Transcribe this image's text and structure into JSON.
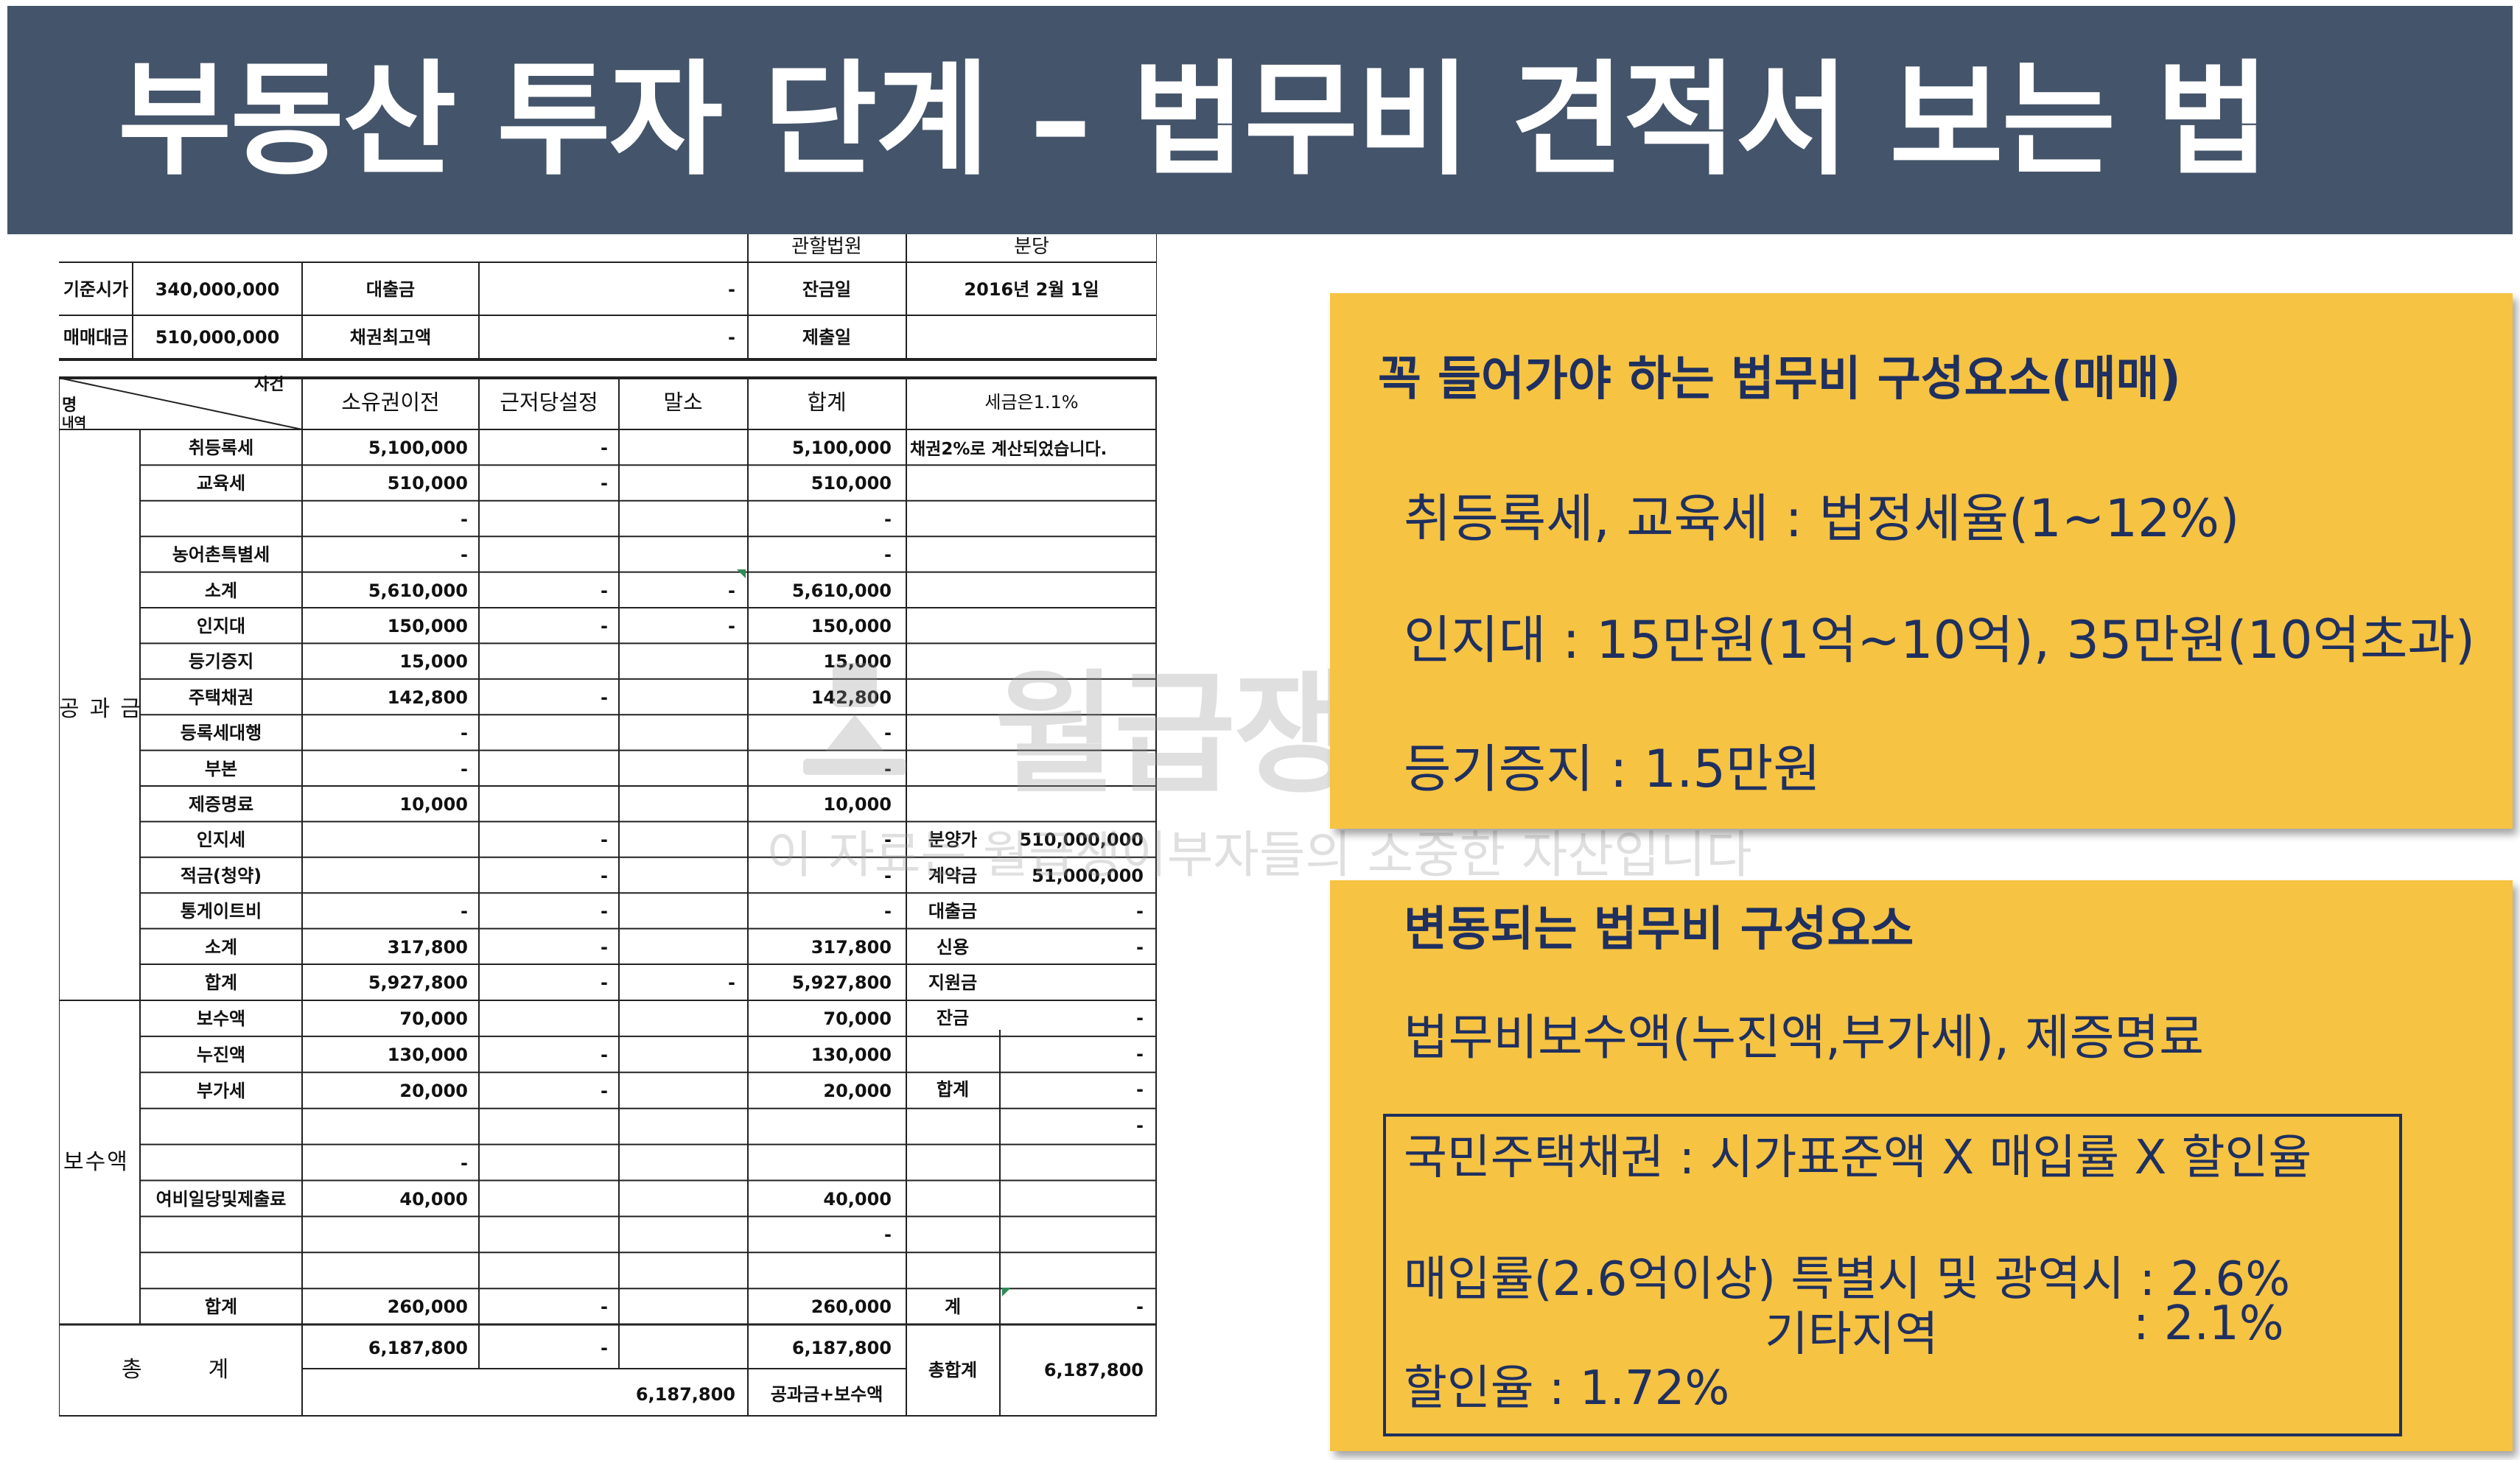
{
  "title": "부동산 투자 단계 – 법무비 견적서 보는 법",
  "colors": {
    "title_bg": "#44546a",
    "title_text": "#ffffff",
    "box_bg": "#f6c342",
    "box_text": "#1f3060"
  },
  "sheet": {
    "top": {
      "court_label": "관할법원",
      "unit_label": "분당",
      "base_price_label": "기준시가",
      "base_price": "340,000,000",
      "loan_label": "대출금",
      "loan_dash": "-",
      "balance_date_label": "잔금일",
      "balance_date": "2016년 2월 1일",
      "sale_price_label": "매매대금",
      "sale_price": "510,000,000",
      "max_bond_label": "채권최고액",
      "max_bond_dash": "-",
      "submit_date_label": "제출일"
    },
    "header": {
      "corner_top": "사건",
      "corner_bottom": "명",
      "corner_cut": "내역",
      "col1": "소유권이전",
      "col2": "근저당설정",
      "col3": "말소",
      "col4": "합계",
      "note": "세금은1.1%"
    },
    "section_public": "공과금",
    "section_fee": "보수액",
    "section_total": "총계",
    "public_rows": [
      {
        "name": "취등록세",
        "a": "5,100,000",
        "b": "-",
        "c": "",
        "total": "5,100,000"
      },
      {
        "name": "교육세",
        "a": "510,000",
        "b": "-",
        "c": "",
        "total": "510,000"
      },
      {
        "name": "",
        "a": "-",
        "b": "",
        "c": "",
        "total": "-"
      },
      {
        "name": "농어촌특별세",
        "a": "-",
        "b": "",
        "c": "",
        "total": "-"
      },
      {
        "name": "소계",
        "a": "5,610,000",
        "b": "-",
        "c": "-",
        "total": "5,610,000"
      },
      {
        "name": "인지대",
        "a": "150,000",
        "b": "-",
        "c": "-",
        "total": "150,000"
      },
      {
        "name": "등기증지",
        "a": "15,000",
        "b": "",
        "c": "",
        "total": "15,000"
      },
      {
        "name": "주택채권",
        "a": "142,800",
        "b": "-",
        "c": "",
        "total": "142,800"
      },
      {
        "name": "등록세대행",
        "a": "-",
        "b": "",
        "c": "",
        "total": "-"
      },
      {
        "name": "부본",
        "a": "-",
        "b": "",
        "c": "",
        "total": "-"
      },
      {
        "name": "제증명료",
        "a": "10,000",
        "b": "",
        "c": "",
        "total": "10,000"
      },
      {
        "name": "인지세",
        "a": "",
        "b": "-",
        "c": "",
        "total": "-"
      },
      {
        "name": "적금(청약)",
        "a": "",
        "b": "-",
        "c": "",
        "total": "-"
      },
      {
        "name": "통게이트비",
        "a": "-",
        "b": "-",
        "c": "",
        "total": "-"
      },
      {
        "name": "소계",
        "a": "317,800",
        "b": "-",
        "c": "",
        "total": "317,800"
      },
      {
        "name": "합계",
        "a": "5,927,800",
        "b": "-",
        "c": "-",
        "total": "5,927,800"
      }
    ],
    "fee_rows": [
      {
        "name": "보수액",
        "a": "70,000",
        "b": "",
        "c": "",
        "total": "70,000"
      },
      {
        "name": "누진액",
        "a": "130,000",
        "b": "-",
        "c": "",
        "total": "130,000"
      },
      {
        "name": "부가세",
        "a": "20,000",
        "b": "-",
        "c": "",
        "total": "20,000"
      },
      {
        "name": "",
        "a": "",
        "b": "",
        "c": "",
        "total": ""
      },
      {
        "name": "",
        "a": "-",
        "b": "",
        "c": "",
        "total": ""
      },
      {
        "name": "여비일당및제출료",
        "a": "40,000",
        "b": "",
        "c": "",
        "total": "40,000"
      },
      {
        "name": "",
        "a": "",
        "b": "",
        "c": "",
        "total": "-"
      },
      {
        "name": "",
        "a": "",
        "b": "",
        "c": "",
        "total": ""
      },
      {
        "name": "합계",
        "a": "260,000",
        "b": "-",
        "c": "",
        "total": "260,000"
      }
    ],
    "right_note": "채권2%로 계산되었습니다.",
    "right_rows": [
      {
        "label": "분양가",
        "value": "510,000,000"
      },
      {
        "label": "계약금",
        "value": "51,000,000"
      },
      {
        "label": "대출금",
        "value": "-"
      },
      {
        "label": "신용",
        "value": "-"
      },
      {
        "label": "지원금",
        "value": ""
      },
      {
        "label": "잔금",
        "value": "-"
      },
      {
        "label": "",
        "value": "-"
      },
      {
        "label": "합계",
        "value": "-"
      },
      {
        "label": "",
        "value": "-"
      }
    ],
    "right_total_label": "계",
    "right_total_value": "-",
    "grand": {
      "a": "6,187,800",
      "b": "-",
      "total": "6,187,800",
      "combined": "6,187,800",
      "combined_label": "공과금+보수액",
      "sum_label": "총합계",
      "sum_value": "6,187,800"
    }
  },
  "watermark": {
    "main": "월급쟁이부자들",
    "sub": "이 자료는 월급쟁이부자들의 소중한 자산입니다"
  },
  "box1": {
    "heading": "꼭 들어가야 하는 법무비 구성요소(매매)",
    "line1": "취등록세, 교육세 : 법정세율(1~12%)",
    "line2": "인지대 : 15만원(1억~10억), 35만원(10억초과)",
    "line3": "등기증지 : 1.5만원"
  },
  "box2": {
    "heading": "변동되는 법무비 구성요소",
    "line1": "법무비보수액(누진액,부가세), 제증명료",
    "bond_formula": "국민주택채권 : 시가표준액 X 매입률 X 할인율",
    "purchase_rate_line": "매입률(2.6억이상) 특별시 및 광역시 : 2.6%",
    "other_region_label": "기타지역",
    "other_region_rate": ": 2.1%",
    "discount_line": "할인율 : 1.72%"
  }
}
